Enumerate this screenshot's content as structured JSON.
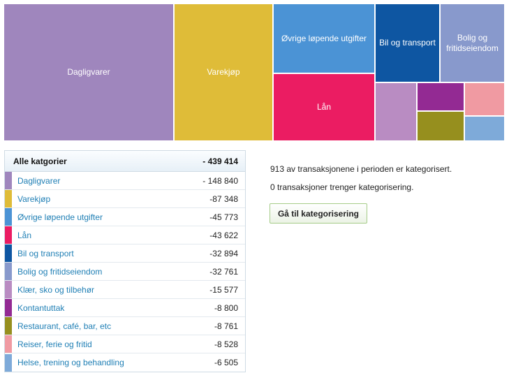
{
  "colors": {
    "dagligvarer": "#9f86bd",
    "varekjop": "#dfbc38",
    "ovrige": "#4b93d5",
    "lan": "#eb1c62",
    "bil": "#0e56a2",
    "bolig": "#8899cc",
    "klaer": "#b98cc2",
    "kontantuttak": "#932a93",
    "restaurant": "#968f1e",
    "reiser": "#f09aa2",
    "helse": "#7eaad9"
  },
  "treemap": {
    "tiles": [
      {
        "label": "Dagligvarer"
      },
      {
        "label": "Varekjøp"
      },
      {
        "label": "Øvrige løpende utgifter"
      },
      {
        "label": "Bil og transport"
      },
      {
        "label": "Bolig og fritidseiendom"
      },
      {
        "label": "Lån"
      },
      {
        "label": ""
      },
      {
        "label": ""
      },
      {
        "label": ""
      },
      {
        "label": ""
      },
      {
        "label": ""
      }
    ]
  },
  "table": {
    "header": {
      "label": "Alle katgorier",
      "value": "- 439 414"
    },
    "rows": [
      {
        "label": "Dagligvarer",
        "value": "- 148 840"
      },
      {
        "label": "Varekjøp",
        "value": "-87 348"
      },
      {
        "label": "Øvrige løpende utgifter",
        "value": "-45 773"
      },
      {
        "label": "Lån",
        "value": "-43 622"
      },
      {
        "label": "Bil og transport",
        "value": "-32 894"
      },
      {
        "label": "Bolig og fritidseiendom",
        "value": "-32 761"
      },
      {
        "label": "Klær, sko og tilbehør",
        "value": "-15 577"
      },
      {
        "label": "Kontantuttak",
        "value": "-8 800"
      },
      {
        "label": "Restaurant, café, bar, etc",
        "value": "-8 761"
      },
      {
        "label": "Reiser, ferie og fritid",
        "value": "-8 528"
      },
      {
        "label": "Helse, trening og behandling",
        "value": "-6 505"
      }
    ]
  },
  "info": {
    "categorized_text": "913 av transaksjonene i perioden er kategorisert.",
    "uncategorized_text": "0 transaksjoner trenger kategorisering."
  },
  "actions": {
    "categorize_label": "Gå til kategorisering"
  }
}
